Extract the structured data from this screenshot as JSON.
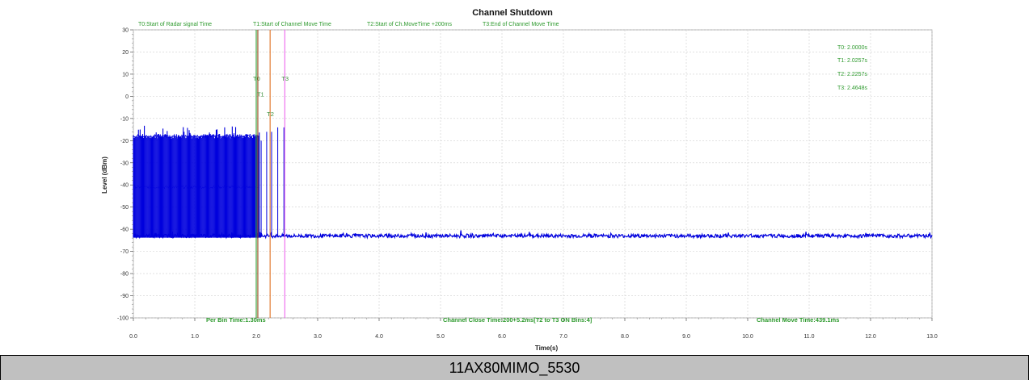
{
  "caption": "11AX80MIMO_5530",
  "colors": {
    "signal": "#0000dd",
    "t0": "#2e9a2e",
    "t1": "#8b4513",
    "t2": "#e07020",
    "t3": "#ee66ee",
    "annotation": "#2e9a2e"
  },
  "chart_data": {
    "type": "line",
    "title": "Channel Shutdown",
    "xlabel": "Time(s)",
    "ylabel": "Level (dBm)",
    "xlim": [
      0,
      13
    ],
    "ylim": [
      -100,
      30
    ],
    "x_ticks": [
      "0.0",
      "1.0",
      "2.0",
      "3.0",
      "4.0",
      "5.0",
      "6.0",
      "7.0",
      "8.0",
      "9.0",
      "10.0",
      "11.0",
      "12.0",
      "13.0"
    ],
    "y_ticks": [
      "30",
      "20",
      "10",
      "0",
      "-10",
      "-20",
      "-30",
      "-40",
      "-50",
      "-60",
      "-70",
      "-80",
      "-90",
      "-100"
    ],
    "grid": true,
    "legend": [
      "T0:Start of Radar signal Time",
      "T1:Start of Channel Move Time",
      "T2:Start of Ch.MoveTime +200ms",
      "T3:End of Channel Move Time"
    ],
    "markers": [
      {
        "name": "T0",
        "x": 2.0,
        "color": "#2e9a2e"
      },
      {
        "name": "T1",
        "x": 2.0257,
        "color": "#8b4513"
      },
      {
        "name": "T2",
        "x": 2.2257,
        "color": "#e07020"
      },
      {
        "name": "T3",
        "x": 2.4648,
        "color": "#ee66ee"
      }
    ],
    "marker_values": [
      "T0: 2.0000s",
      "T1: 2.0257s",
      "T2: 2.2257s",
      "T3: 2.4648s"
    ],
    "annotations": [
      "Per Bin Time:1.30ms",
      "Channel Close Time:200+5.2ms[T2 to T3 ON Bins:4]",
      "Channel Move Time:439.1ms"
    ],
    "series": [
      {
        "noise_floor": -63,
        "bursts": {
          "x_range": [
            0.0,
            2.05
          ],
          "peak_range": [
            -19,
            -13
          ],
          "floor": -63
        },
        "post_pulses": [
          {
            "x": 2.08,
            "peak": -20
          },
          {
            "x": 2.17,
            "peak": -16
          },
          {
            "x": 2.25,
            "peak": -16
          },
          {
            "x": 2.35,
            "peak": -14
          },
          {
            "x": 2.45,
            "peak": -14
          }
        ]
      }
    ]
  }
}
